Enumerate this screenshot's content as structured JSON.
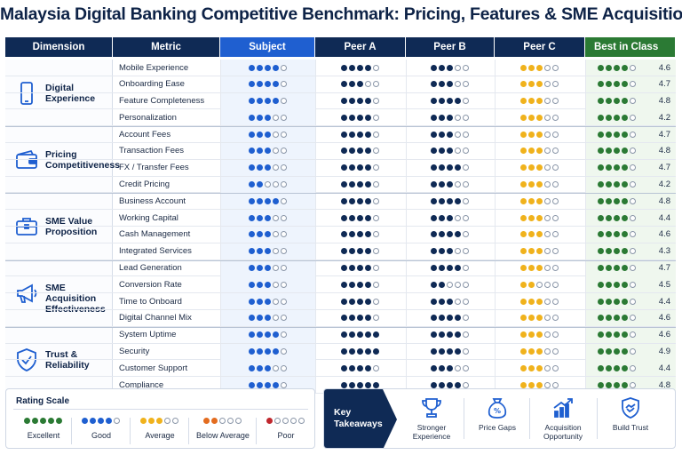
{
  "title": "Malaysia Digital Banking Competitive Benchmark: Pricing, Features & SME Acquisition",
  "headers": {
    "dimension": "Dimension",
    "metric": "Metric",
    "subject": "Subject",
    "peer_a": "Peer A",
    "peer_b": "Peer B",
    "peer_c": "Peer C",
    "best": "Best in Class"
  },
  "colors": {
    "subject": "#1f5fd0",
    "peer_a": "#0f2a55",
    "peer_b": "#0f2a55",
    "peer_c": "#f0b21c",
    "best": "#2b7a34",
    "below_average": "#e36c1f",
    "poor": "#c0272d"
  },
  "groups": [
    {
      "name": "Digital Experience",
      "icon": "smartphone-icon",
      "rows": [
        {
          "metric": "Mobile Experience",
          "subject": 4,
          "peer_a": 4,
          "peer_b": 3,
          "peer_c": 3,
          "best": 4,
          "score": "4.6"
        },
        {
          "metric": "Onboarding Ease",
          "subject": 4,
          "peer_a": 3,
          "peer_b": 3,
          "peer_c": 3,
          "best": 4,
          "score": "4.7"
        },
        {
          "metric": "Feature Completeness",
          "subject": 4,
          "peer_a": 4,
          "peer_b": 4,
          "peer_c": 3,
          "best": 4,
          "score": "4.8"
        },
        {
          "metric": "Personalization",
          "subject": 3,
          "peer_a": 4,
          "peer_b": 3,
          "peer_c": 3,
          "best": 4,
          "score": "4.2"
        }
      ]
    },
    {
      "name": "Pricing Competitiveness",
      "icon": "wallet-icon",
      "rows": [
        {
          "metric": "Account Fees",
          "subject": 3,
          "peer_a": 4,
          "peer_b": 3,
          "peer_c": 3,
          "best": 4,
          "score": "4.7"
        },
        {
          "metric": "Transaction Fees",
          "subject": 3,
          "peer_a": 4,
          "peer_b": 3,
          "peer_c": 3,
          "best": 4,
          "score": "4.8"
        },
        {
          "metric": "FX / Transfer Fees",
          "subject": 3,
          "peer_a": 4,
          "peer_b": 4,
          "peer_c": 3,
          "best": 4,
          "score": "4.7"
        },
        {
          "metric": "Credit Pricing",
          "subject": 2,
          "peer_a": 4,
          "peer_b": 3,
          "peer_c": 3,
          "best": 4,
          "score": "4.2"
        }
      ]
    },
    {
      "name": "SME Value Proposition",
      "icon": "briefcase-icon",
      "rows": [
        {
          "metric": "Business Account",
          "subject": 4,
          "peer_a": 4,
          "peer_b": 4,
          "peer_c": 3,
          "best": 4,
          "score": "4.8"
        },
        {
          "metric": "Working Capital",
          "subject": 3,
          "peer_a": 4,
          "peer_b": 3,
          "peer_c": 3,
          "best": 4,
          "score": "4.4"
        },
        {
          "metric": "Cash Management",
          "subject": 3,
          "peer_a": 4,
          "peer_b": 4,
          "peer_c": 3,
          "best": 4,
          "score": "4.6"
        },
        {
          "metric": "Integrated Services",
          "subject": 3,
          "peer_a": 4,
          "peer_b": 3,
          "peer_c": 3,
          "best": 4,
          "score": "4.3"
        }
      ]
    },
    {
      "name": "SME Acquisition Effectiveness",
      "icon": "megaphone-icon",
      "rows": [
        {
          "metric": "Lead Generation",
          "subject": 3,
          "peer_a": 4,
          "peer_b": 4,
          "peer_c": 3,
          "best": 4,
          "score": "4.7"
        },
        {
          "metric": "Conversion Rate",
          "subject": 3,
          "peer_a": 4,
          "peer_b": 2,
          "peer_c": 2,
          "best": 4,
          "score": "4.5"
        },
        {
          "metric": "Time to Onboard",
          "subject": 3,
          "peer_a": 4,
          "peer_b": 3,
          "peer_c": 3,
          "best": 4,
          "score": "4.4"
        },
        {
          "metric": "Digital Channel Mix",
          "subject": 3,
          "peer_a": 4,
          "peer_b": 4,
          "peer_c": 3,
          "best": 4,
          "score": "4.6"
        }
      ]
    },
    {
      "name": "Trust & Reliability",
      "icon": "shield-check-icon",
      "rows": [
        {
          "metric": "System Uptime",
          "subject": 4,
          "peer_a": 5,
          "peer_b": 4,
          "peer_c": 3,
          "best": 4,
          "score": "4.6"
        },
        {
          "metric": "Security",
          "subject": 4,
          "peer_a": 5,
          "peer_b": 4,
          "peer_c": 3,
          "best": 4,
          "score": "4.9"
        },
        {
          "metric": "Customer Support",
          "subject": 3,
          "peer_a": 4,
          "peer_b": 3,
          "peer_c": 3,
          "best": 4,
          "score": "4.4"
        },
        {
          "metric": "Compliance",
          "subject": 4,
          "peer_a": 5,
          "peer_b": 4,
          "peer_c": 3,
          "best": 4,
          "score": "4.8"
        }
      ]
    }
  ],
  "rating_scale": {
    "title": "Rating Scale",
    "levels": [
      {
        "label": "Excellent",
        "filled": 5,
        "color": "#2b7a34"
      },
      {
        "label": "Good",
        "filled": 4,
        "color": "#1f5fd0"
      },
      {
        "label": "Average",
        "filled": 3,
        "color": "#f0b21c"
      },
      {
        "label": "Below Average",
        "filled": 2,
        "color": "#e36c1f"
      },
      {
        "label": "Poor",
        "filled": 1,
        "color": "#c0272d"
      }
    ]
  },
  "takeaways": {
    "label": "Key Takeaways",
    "items": [
      {
        "label": "Stronger Experience",
        "icon": "trophy-icon"
      },
      {
        "label": "Price Gaps",
        "icon": "money-bag-icon"
      },
      {
        "label": "Acquisition Opportunity",
        "icon": "growth-chart-icon"
      },
      {
        "label": "Build Trust",
        "icon": "handshake-icon"
      }
    ]
  }
}
